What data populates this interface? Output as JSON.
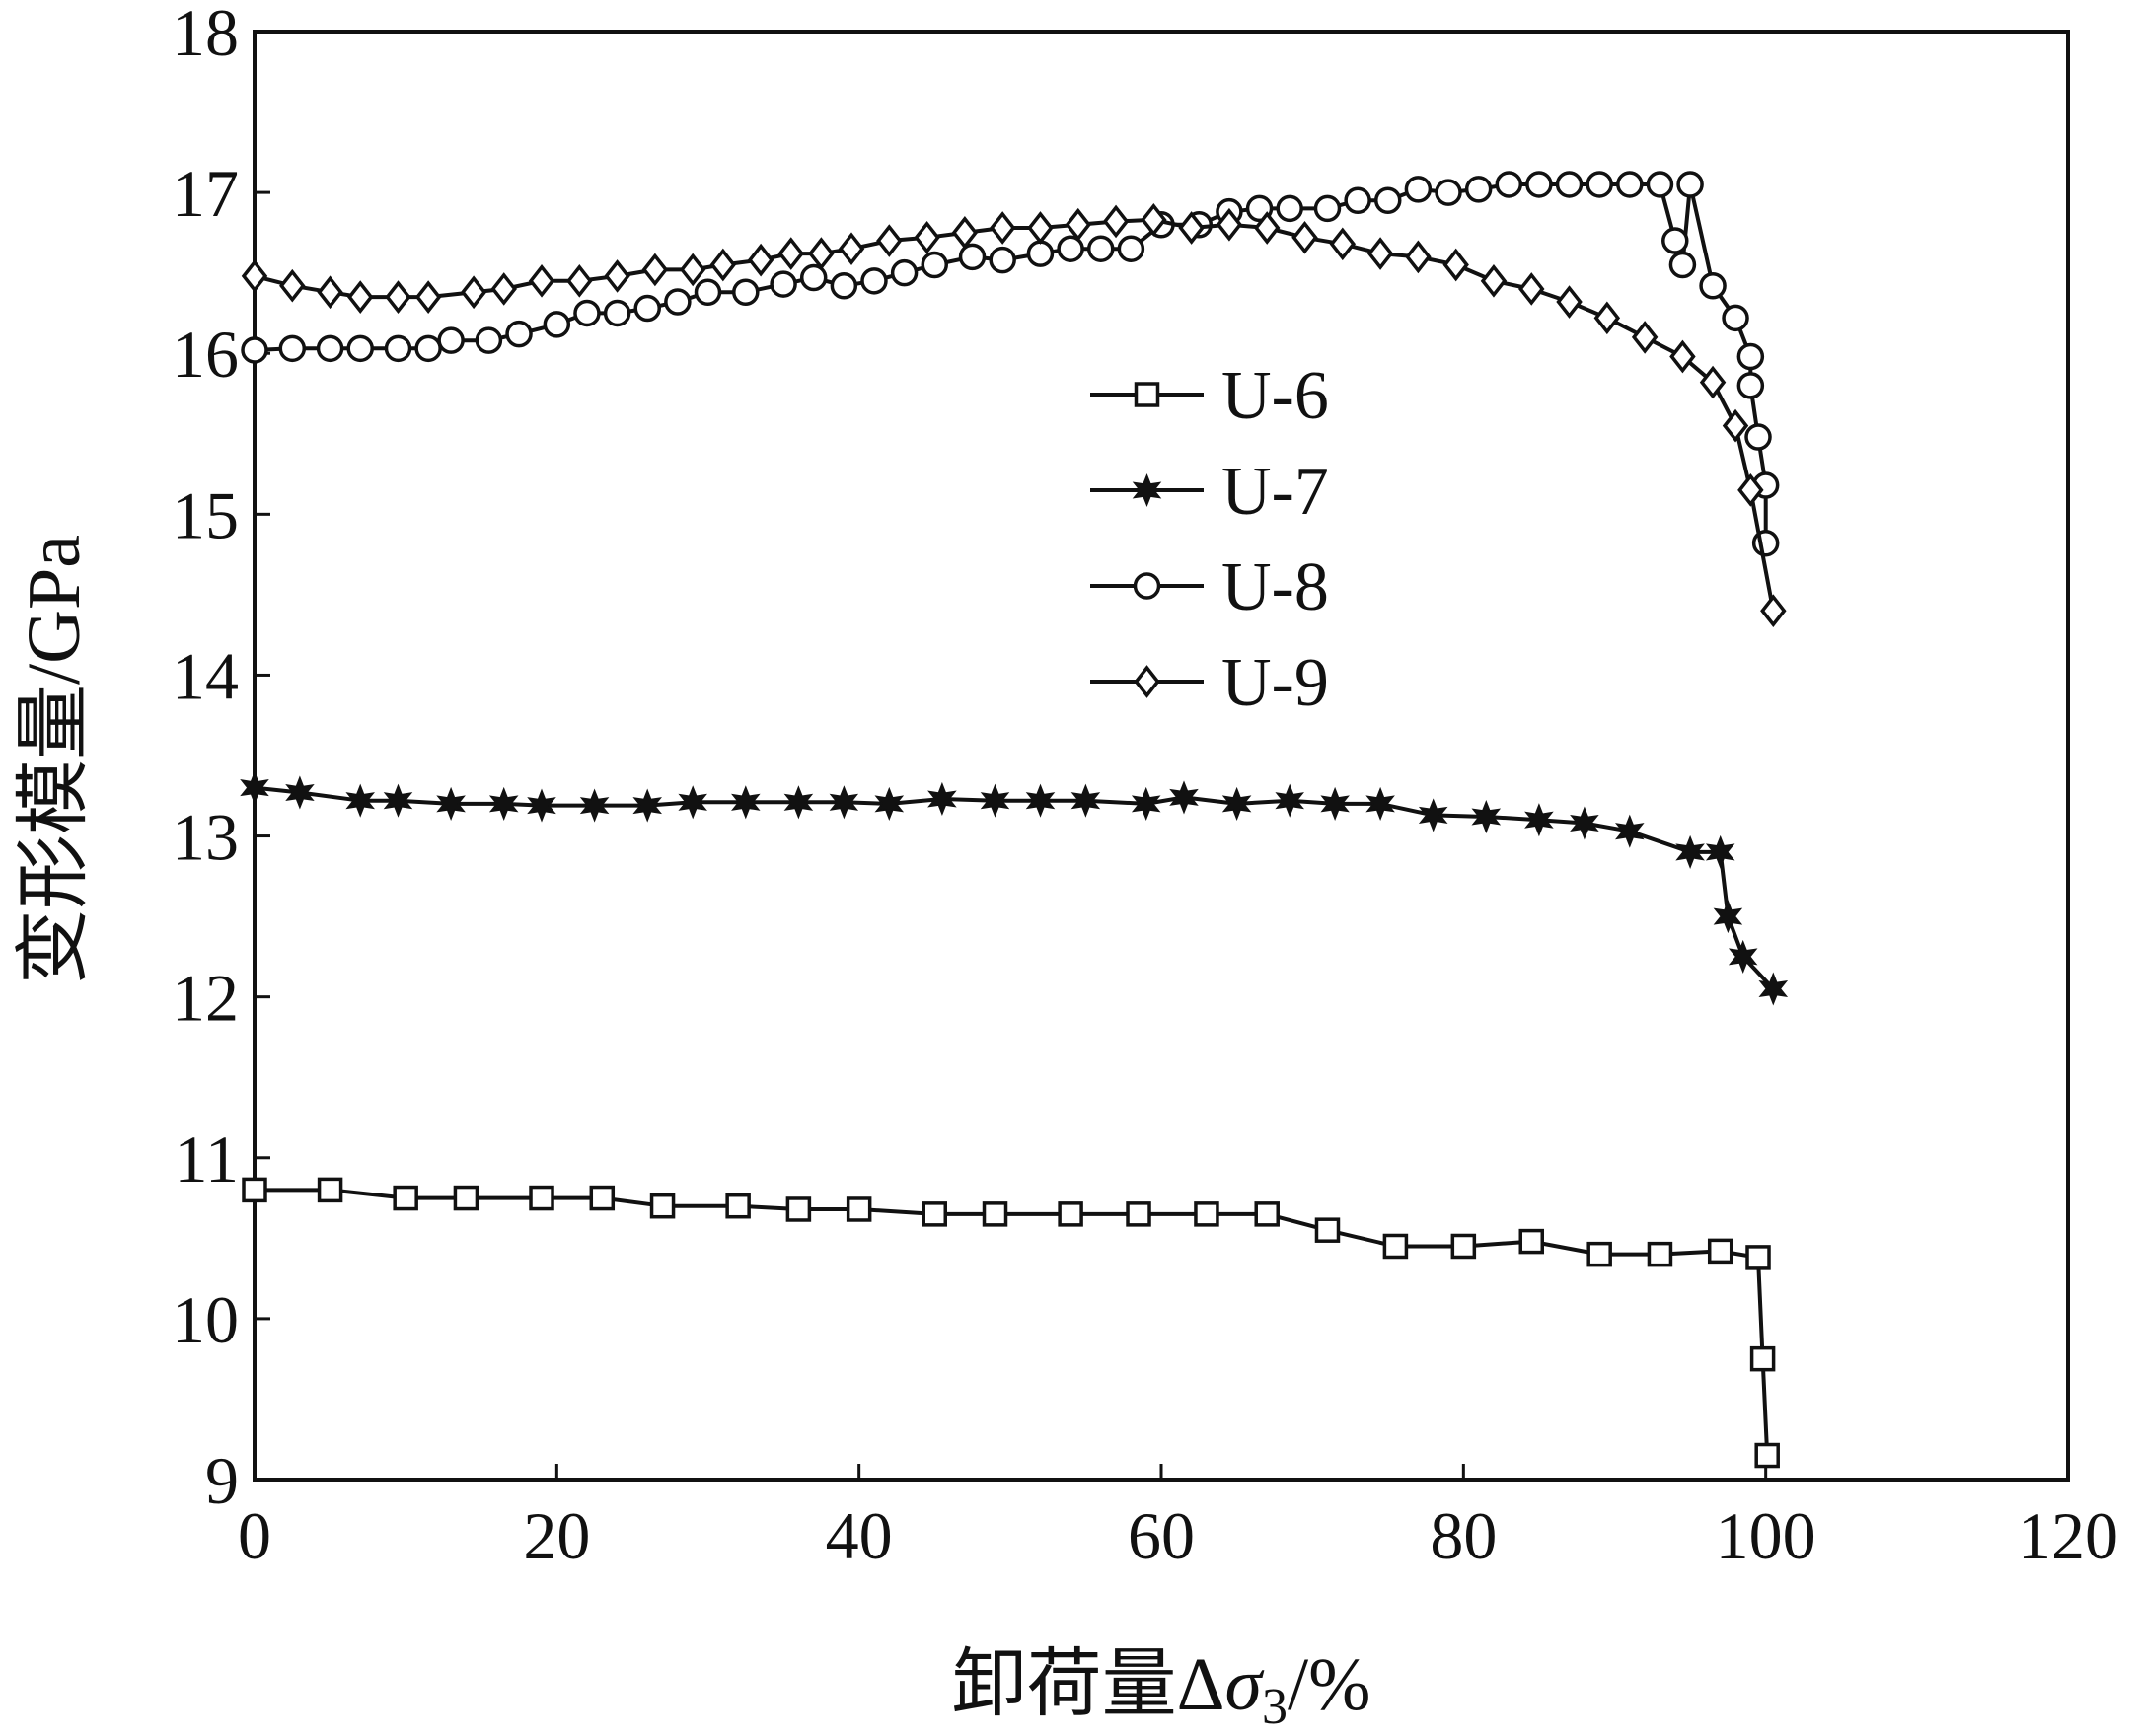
{
  "chart_data": {
    "type": "line",
    "title": "",
    "xlabel": "卸荷量Δσ3/%",
    "xlabel_parts": {
      "prefix": "卸荷量Δ",
      "sigma": "σ",
      "subscript": "3",
      "suffix": "/%"
    },
    "ylabel": "变形模量/GPa",
    "xlim": [
      0,
      120
    ],
    "ylim": [
      9,
      18
    ],
    "x_ticks": [
      "0",
      "20",
      "40",
      "60",
      "80",
      "100",
      "120"
    ],
    "y_ticks": [
      "9",
      "10",
      "11",
      "12",
      "13",
      "14",
      "15",
      "16",
      "17",
      "18"
    ],
    "grid": false,
    "legend_position": "center",
    "line_color": "#111111",
    "series": [
      {
        "name": "U-6",
        "marker": "square",
        "x": [
          0,
          5,
          10,
          14,
          19,
          23,
          27,
          32,
          36,
          40,
          45,
          49,
          54,
          58.5,
          63,
          67,
          71,
          75.5,
          80,
          84.5,
          89,
          93,
          97,
          99.5,
          99.8,
          100.1
        ],
        "y": [
          10.8,
          10.8,
          10.75,
          10.75,
          10.75,
          10.75,
          10.7,
          10.7,
          10.68,
          10.68,
          10.65,
          10.65,
          10.65,
          10.65,
          10.65,
          10.65,
          10.55,
          10.45,
          10.45,
          10.48,
          10.4,
          10.4,
          10.42,
          10.38,
          9.75,
          9.15
        ]
      },
      {
        "name": "U-7",
        "marker": "star",
        "x": [
          0,
          3,
          7,
          9.5,
          13,
          16.5,
          19,
          22.5,
          26,
          29,
          32.5,
          36,
          39,
          42,
          45.5,
          49,
          52,
          55,
          59,
          61.5,
          65,
          68.5,
          71.5,
          74.5,
          78,
          81.5,
          85,
          88,
          91,
          95,
          97,
          97.5,
          98.5,
          100.5
        ],
        "y": [
          13.3,
          13.27,
          13.22,
          13.22,
          13.2,
          13.2,
          13.19,
          13.19,
          13.19,
          13.21,
          13.21,
          13.21,
          13.21,
          13.2,
          13.23,
          13.22,
          13.22,
          13.22,
          13.2,
          13.24,
          13.2,
          13.22,
          13.2,
          13.2,
          13.13,
          13.12,
          13.1,
          13.08,
          13.03,
          12.9,
          12.9,
          12.5,
          12.25,
          12.05
        ]
      },
      {
        "name": "U-8",
        "marker": "circle",
        "x": [
          0,
          2.5,
          5,
          7,
          9.5,
          11.5,
          13,
          15.5,
          17.5,
          20,
          22,
          24,
          26,
          28,
          30,
          32.5,
          35,
          37,
          39,
          41,
          43,
          45,
          47.5,
          49.5,
          52,
          54,
          56,
          58,
          60,
          62.5,
          64.5,
          66.5,
          68.5,
          71,
          73,
          75,
          77,
          79,
          81,
          83,
          85,
          87,
          89,
          91,
          93,
          94,
          94.5,
          95,
          96.5,
          98,
          99,
          99,
          99.5,
          100,
          100
        ],
        "y": [
          16.02,
          16.03,
          16.03,
          16.03,
          16.03,
          16.03,
          16.08,
          16.08,
          16.12,
          16.18,
          16.25,
          16.25,
          16.28,
          16.32,
          16.38,
          16.38,
          16.43,
          16.47,
          16.42,
          16.45,
          16.5,
          16.55,
          16.6,
          16.58,
          16.62,
          16.65,
          16.65,
          16.65,
          16.8,
          16.8,
          16.88,
          16.9,
          16.9,
          16.9,
          16.95,
          16.95,
          17.02,
          17,
          17.02,
          17.05,
          17.05,
          17.05,
          17.05,
          17.05,
          17.05,
          16.7,
          16.55,
          17.05,
          16.42,
          16.22,
          15.98,
          15.8,
          15.48,
          15.18,
          14.82
        ]
      },
      {
        "name": "U-9",
        "marker": "diamond",
        "x": [
          0,
          2.5,
          5,
          7,
          9.5,
          11.5,
          14.5,
          16.5,
          19,
          21.5,
          24,
          26.5,
          29,
          31,
          33.5,
          35.5,
          37.5,
          39.5,
          42,
          44.5,
          47,
          49.5,
          52,
          54.5,
          57,
          59.5,
          62,
          64.5,
          67,
          69.5,
          72,
          74.5,
          77,
          79.5,
          82,
          84.5,
          87,
          89.5,
          92,
          94.5,
          96.5,
          98,
          99,
          100.5
        ],
        "y": [
          16.48,
          16.42,
          16.38,
          16.35,
          16.35,
          16.35,
          16.38,
          16.4,
          16.45,
          16.45,
          16.48,
          16.52,
          16.52,
          16.55,
          16.58,
          16.62,
          16.62,
          16.65,
          16.7,
          16.72,
          16.75,
          16.78,
          16.78,
          16.8,
          16.82,
          16.83,
          16.78,
          16.8,
          16.78,
          16.72,
          16.68,
          16.62,
          16.6,
          16.55,
          16.45,
          16.4,
          16.32,
          16.22,
          16.1,
          15.98,
          15.82,
          15.55,
          15.15,
          14.4
        ]
      }
    ]
  }
}
